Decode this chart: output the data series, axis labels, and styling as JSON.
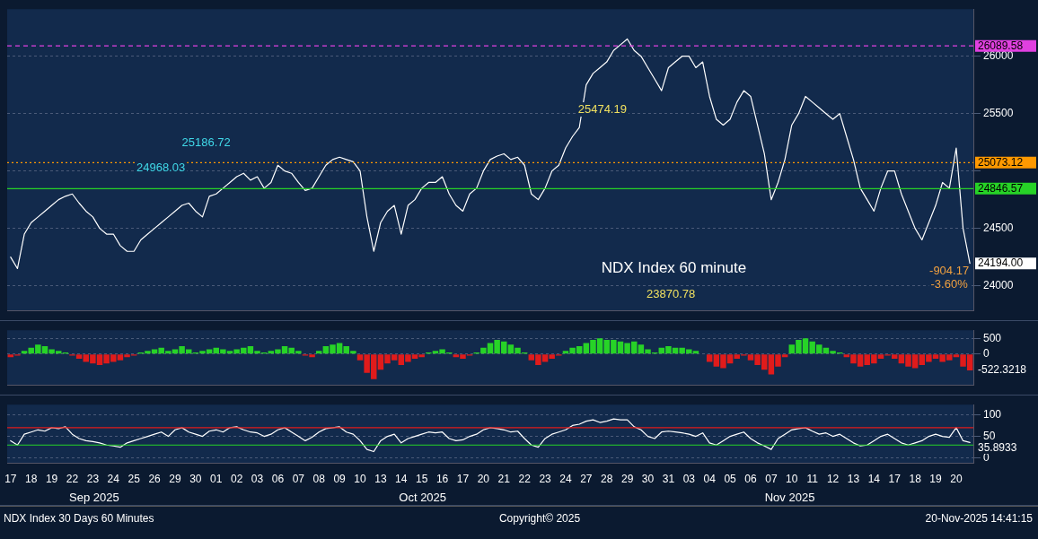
{
  "chart_data": [
    {
      "type": "line",
      "title": "NDX Index 60 minute",
      "categories": [
        "17",
        null,
        null,
        "18",
        null,
        null,
        "19",
        null,
        null,
        "22",
        null,
        null,
        "23",
        null,
        null,
        "24",
        null,
        null,
        "25",
        null,
        null,
        "26",
        null,
        null,
        "29",
        null,
        null,
        "30",
        null,
        null,
        "01",
        null,
        null,
        "02",
        null,
        null,
        "03",
        null,
        null,
        "06",
        null,
        null,
        "07",
        null,
        null,
        "08",
        null,
        null,
        "09",
        null,
        null,
        "10",
        null,
        null,
        "13",
        null,
        null,
        "14",
        null,
        null,
        "15",
        null,
        null,
        "16",
        null,
        null,
        "17",
        null,
        null,
        "20",
        null,
        null,
        "21",
        null,
        null,
        "22",
        null,
        null,
        "23",
        null,
        null,
        "24",
        null,
        null,
        "27",
        null,
        null,
        "28",
        null,
        null,
        "29",
        null,
        null,
        "30",
        null,
        null,
        "31",
        null,
        null,
        "03",
        null,
        null,
        "04",
        null,
        null,
        "05",
        null,
        null,
        "06",
        null,
        null,
        "07",
        null,
        null,
        "10",
        null,
        null,
        "11",
        null,
        null,
        "12",
        null,
        null,
        "13",
        null,
        null,
        "14",
        null,
        null,
        "17",
        null,
        null,
        "18",
        null,
        null,
        "19",
        null,
        null,
        "20",
        null,
        null
      ],
      "series": [
        {
          "color": "#ffffff",
          "values": [
            24250,
            24150,
            24450,
            24550,
            24600,
            24650,
            24700,
            24750,
            24780,
            24800,
            24720,
            24650,
            24600,
            24500,
            24450,
            24450,
            24350,
            24300,
            24300,
            24400,
            24450,
            24500,
            24550,
            24600,
            24650,
            24700,
            24720,
            24650,
            24600,
            24780,
            24800,
            24850,
            24900,
            24950,
            24980,
            24920,
            24950,
            24850,
            24900,
            25050,
            25000,
            24980,
            24900,
            24830,
            24850,
            24950,
            25050,
            25100,
            25120,
            25100,
            25080,
            25000,
            24600,
            24300,
            24550,
            24650,
            24700,
            24450,
            24700,
            24750,
            24850,
            24900,
            24900,
            24950,
            24800,
            24700,
            24650,
            24800,
            24850,
            25000,
            25100,
            25130,
            25150,
            25100,
            25120,
            25050,
            24800,
            24750,
            24850,
            25000,
            25050,
            25200,
            25300,
            25380,
            25750,
            25850,
            25900,
            25950,
            26050,
            26100,
            26150,
            26050,
            26000,
            25900,
            25800,
            25700,
            25900,
            25950,
            26000,
            26000,
            25900,
            25950,
            25650,
            25450,
            25400,
            25450,
            25600,
            25700,
            25650,
            25400,
            25150,
            24750,
            24900,
            25100,
            25400,
            25500,
            25650,
            25600,
            25550,
            25500,
            25450,
            25500,
            25300,
            25100,
            24850,
            24750,
            24650,
            24850,
            25000,
            25000,
            24800,
            24650,
            24500,
            24400,
            24550,
            24700,
            24900,
            24850,
            25200,
            24500,
            24194
          ]
        }
      ],
      "ylim": [
        23780,
        26410
      ],
      "yticks": [
        24000,
        24500,
        {
          "value": 25000,
          "label": null
        },
        25500,
        26000
      ],
      "grid": "y",
      "tick_labels": "y",
      "ref_lines": [
        {
          "axis": "y",
          "value": 26089.58,
          "label": "26089.58",
          "color": "#e040e0",
          "line_style": "dashed"
        },
        {
          "axis": "y",
          "value": 25073.12,
          "label": "25073.12",
          "color": "#ff9900",
          "line_style": "dotted"
        },
        {
          "axis": "y",
          "value": 24846.57,
          "label": "24846.57",
          "color": "#27d327",
          "line_style": "solid"
        }
      ],
      "annotations": [
        "25474.19",
        "25186.72",
        "24968.03",
        "23870.78",
        "-904.17",
        "-3.60%",
        "24194.00"
      ]
    },
    {
      "type": "bar",
      "categories": [
        "17",
        null,
        null,
        "18",
        null,
        null,
        "19",
        null,
        null,
        "22",
        null,
        null,
        "23",
        null,
        null,
        "24",
        null,
        null,
        "25",
        null,
        null,
        "26",
        null,
        null,
        "29",
        null,
        null,
        "30",
        null,
        null,
        "01",
        null,
        null,
        "02",
        null,
        null,
        "03",
        null,
        null,
        "06",
        null,
        null,
        "07",
        null,
        null,
        "08",
        null,
        null,
        "09",
        null,
        null,
        "10",
        null,
        null,
        "13",
        null,
        null,
        "14",
        null,
        null,
        "15",
        null,
        null,
        "16",
        null,
        null,
        "17",
        null,
        null,
        "20",
        null,
        null,
        "21",
        null,
        null,
        "22",
        null,
        null,
        "23",
        null,
        null,
        "24",
        null,
        null,
        "27",
        null,
        null,
        "28",
        null,
        null,
        "29",
        null,
        null,
        "30",
        null,
        null,
        "31",
        null,
        null,
        "03",
        null,
        null,
        "04",
        null,
        null,
        "05",
        null,
        null,
        "06",
        null,
        null,
        "07",
        null,
        null,
        "10",
        null,
        null,
        "11",
        null,
        null,
        "12",
        null,
        null,
        "13",
        null,
        null,
        "14",
        null,
        null,
        "17",
        null,
        null,
        "18",
        null,
        null,
        "19",
        null,
        null,
        "20",
        null,
        null
      ],
      "values": [
        -100,
        -50,
        100,
        200,
        300,
        250,
        150,
        100,
        50,
        -50,
        -150,
        -250,
        -300,
        -350,
        -300,
        -250,
        -200,
        -100,
        -50,
        50,
        100,
        150,
        200,
        100,
        150,
        250,
        150,
        50,
        100,
        150,
        200,
        150,
        100,
        150,
        200,
        250,
        100,
        50,
        100,
        150,
        250,
        200,
        100,
        -50,
        -100,
        100,
        250,
        300,
        350,
        250,
        100,
        -200,
        -600,
        -800,
        -500,
        -300,
        -200,
        -350,
        -250,
        -150,
        -100,
        50,
        100,
        150,
        50,
        -100,
        -150,
        -50,
        50,
        200,
        350,
        450,
        400,
        300,
        200,
        50,
        -200,
        -350,
        -250,
        -150,
        -50,
        100,
        200,
        250,
        350,
        450,
        500,
        450,
        450,
        400,
        350,
        400,
        300,
        150,
        50,
        200,
        250,
        200,
        200,
        150,
        100,
        0,
        -250,
        -400,
        -450,
        -300,
        -150,
        -50,
        -200,
        -350,
        -500,
        -650,
        -400,
        -100,
        300,
        450,
        500,
        400,
        300,
        200,
        100,
        50,
        -100,
        -300,
        -400,
        -350,
        -300,
        -150,
        -50,
        -150,
        -300,
        -400,
        -450,
        -350,
        -250,
        -150,
        -250,
        -200,
        -100,
        -400,
        -520
      ],
      "colors": [
        "#e01b1b",
        "#e01b1b",
        "#27d327",
        "#27d327",
        "#27d327",
        "#27d327",
        "#27d327",
        "#27d327",
        "#27d327",
        "#e01b1b",
        "#e01b1b",
        "#e01b1b",
        "#e01b1b",
        "#e01b1b",
        "#e01b1b",
        "#e01b1b",
        "#e01b1b",
        "#e01b1b",
        "#e01b1b",
        "#27d327",
        "#27d327",
        "#27d327",
        "#27d327",
        "#27d327",
        "#27d327",
        "#27d327",
        "#27d327",
        "#27d327",
        "#27d327",
        "#27d327",
        "#27d327",
        "#27d327",
        "#27d327",
        "#27d327",
        "#27d327",
        "#27d327",
        "#27d327",
        "#27d327",
        "#27d327",
        "#27d327",
        "#27d327",
        "#27d327",
        "#27d327",
        "#e01b1b",
        "#e01b1b",
        "#27d327",
        "#27d327",
        "#27d327",
        "#27d327",
        "#27d327",
        "#27d327",
        "#e01b1b",
        "#e01b1b",
        "#e01b1b",
        "#e01b1b",
        "#e01b1b",
        "#e01b1b",
        "#e01b1b",
        "#e01b1b",
        "#e01b1b",
        "#e01b1b",
        "#27d327",
        "#27d327",
        "#27d327",
        "#27d327",
        "#e01b1b",
        "#e01b1b",
        "#e01b1b",
        "#27d327",
        "#27d327",
        "#27d327",
        "#27d327",
        "#27d327",
        "#27d327",
        "#27d327",
        "#27d327",
        "#e01b1b",
        "#e01b1b",
        "#e01b1b",
        "#e01b1b",
        "#e01b1b",
        "#27d327",
        "#27d327",
        "#27d327",
        "#27d327",
        "#27d327",
        "#27d327",
        "#27d327",
        "#27d327",
        "#27d327",
        "#27d327",
        "#27d327",
        "#27d327",
        "#27d327",
        "#27d327",
        "#27d327",
        "#27d327",
        "#27d327",
        "#27d327",
        "#27d327",
        "#27d327",
        "#27d327",
        "#e01b1b",
        "#e01b1b",
        "#e01b1b",
        "#e01b1b",
        "#e01b1b",
        "#e01b1b",
        "#e01b1b",
        "#e01b1b",
        "#e01b1b",
        "#e01b1b",
        "#e01b1b",
        "#e01b1b",
        "#27d327",
        "#27d327",
        "#27d327",
        "#27d327",
        "#27d327",
        "#27d327",
        "#27d327",
        "#27d327",
        "#e01b1b",
        "#e01b1b",
        "#e01b1b",
        "#e01b1b",
        "#e01b1b",
        "#e01b1b",
        "#e01b1b",
        "#e01b1b",
        "#e01b1b",
        "#e01b1b",
        "#e01b1b",
        "#e01b1b",
        "#e01b1b",
        "#e01b1b",
        "#e01b1b",
        "#e01b1b",
        "#e01b1b",
        "#e01b1b",
        "#e01b1b"
      ],
      "ylim": [
        -1000,
        760
      ],
      "yticks": [
        0,
        500
      ],
      "grid": "y",
      "tick_labels": "y",
      "annotations": [
        "-522.3218"
      ]
    },
    {
      "type": "line",
      "categories": [
        "17",
        null,
        null,
        "18",
        null,
        null,
        "19",
        null,
        null,
        "22",
        null,
        null,
        "23",
        null,
        null,
        "24",
        null,
        null,
        "25",
        null,
        null,
        "26",
        null,
        null,
        "29",
        null,
        null,
        "30",
        null,
        null,
        "01",
        null,
        null,
        "02",
        null,
        null,
        "03",
        null,
        null,
        "06",
        null,
        null,
        "07",
        null,
        null,
        "08",
        null,
        null,
        "09",
        null,
        null,
        "10",
        null,
        null,
        "13",
        null,
        null,
        "14",
        null,
        null,
        "15",
        null,
        null,
        "16",
        null,
        null,
        "17",
        null,
        null,
        "20",
        null,
        null,
        "21",
        null,
        null,
        "22",
        null,
        null,
        "23",
        null,
        null,
        "24",
        null,
        null,
        "27",
        null,
        null,
        "28",
        null,
        null,
        "29",
        null,
        null,
        "30",
        null,
        null,
        "31",
        null,
        null,
        "03",
        null,
        null,
        "04",
        null,
        null,
        "05",
        null,
        null,
        "06",
        null,
        null,
        "07",
        null,
        null,
        "10",
        null,
        null,
        "11",
        null,
        null,
        "12",
        null,
        null,
        "13",
        null,
        null,
        "14",
        null,
        null,
        "17",
        null,
        null,
        "18",
        null,
        null,
        "19",
        null,
        null,
        "20",
        null,
        null
      ],
      "series": [
        {
          "color": "#ffffff",
          "values": [
            40,
            30,
            55,
            60,
            65,
            62,
            70,
            68,
            72,
            55,
            45,
            40,
            38,
            35,
            30,
            28,
            25,
            35,
            40,
            45,
            50,
            55,
            60,
            50,
            65,
            70,
            60,
            55,
            50,
            62,
            65,
            60,
            70,
            72,
            65,
            60,
            58,
            50,
            55,
            65,
            70,
            60,
            50,
            40,
            48,
            60,
            68,
            70,
            72,
            60,
            55,
            40,
            20,
            15,
            40,
            50,
            55,
            35,
            45,
            50,
            55,
            60,
            58,
            60,
            45,
            40,
            42,
            50,
            55,
            65,
            70,
            68,
            65,
            60,
            62,
            45,
            30,
            25,
            45,
            55,
            60,
            65,
            75,
            78,
            85,
            88,
            82,
            85,
            90,
            88,
            88,
            72,
            65,
            50,
            45,
            60,
            62,
            60,
            58,
            55,
            50,
            58,
            35,
            30,
            40,
            50,
            55,
            60,
            45,
            35,
            28,
            20,
            45,
            55,
            65,
            68,
            70,
            62,
            55,
            58,
            50,
            55,
            45,
            35,
            28,
            30,
            40,
            50,
            55,
            45,
            35,
            30,
            35,
            40,
            50,
            55,
            50,
            48,
            70,
            40,
            36
          ]
        }
      ],
      "ylim": [
        -12,
        123
      ],
      "yticks": [
        0,
        50,
        100
      ],
      "grid": "y",
      "ref_lines": [
        {
          "axis": "y",
          "value": 70,
          "label": null,
          "color": "#e01b1b",
          "line_style": "solid"
        },
        {
          "axis": "y",
          "value": 30,
          "label": null,
          "color": "#27d327",
          "line_style": "solid"
        }
      ],
      "annotations": [
        "35.8933",
        "Sep 2025",
        "Oct 2025",
        "Nov 2025",
        "NDX Index 30 Days 60 Minutes",
        "Copyright© 2025",
        "20-Nov-2025 14:41:15"
      ]
    }
  ]
}
